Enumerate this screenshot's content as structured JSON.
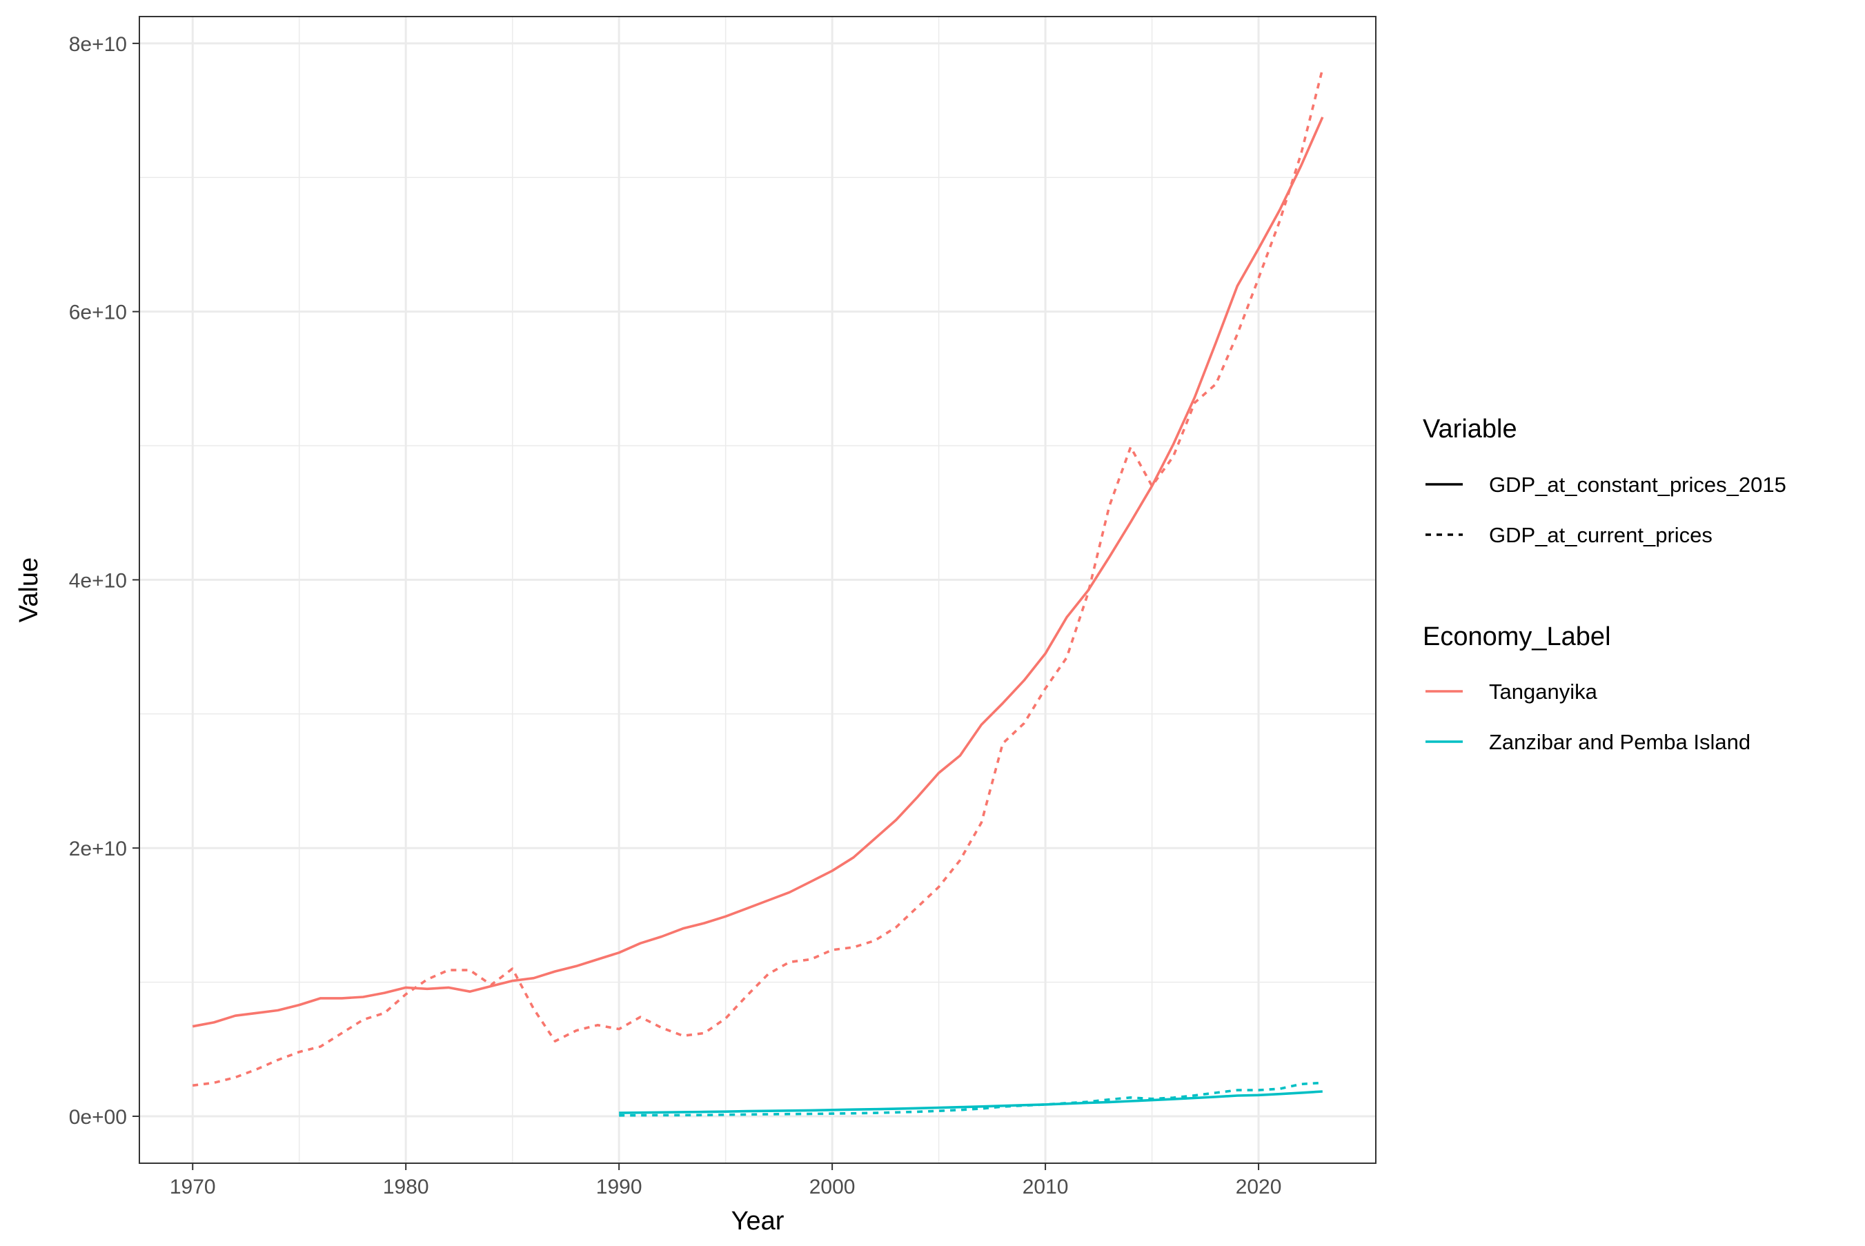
{
  "chart_data": {
    "type": "line",
    "xlabel": "Year",
    "ylabel": "Value",
    "xlim": [
      1967.5,
      2025.5
    ],
    "ylim": [
      -3500000000.0,
      82000000000.0
    ],
    "x_ticks": [
      1970,
      1980,
      1990,
      2000,
      2010,
      2020
    ],
    "x_tick_labels": [
      "1970",
      "1980",
      "1990",
      "2000",
      "2010",
      "2020"
    ],
    "y_ticks": [
      0,
      20000000000,
      40000000000,
      60000000000,
      80000000000
    ],
    "y_tick_labels": [
      "0e+00",
      "2e+10",
      "4e+10",
      "6e+10",
      "8e+10"
    ],
    "grid": true,
    "legend_placement": "right",
    "legends": [
      {
        "title": "Variable",
        "entries": [
          {
            "label": "GDP_at_constant_prices_2015",
            "linetype": "solid"
          },
          {
            "label": "GDP_at_current_prices",
            "linetype": "dotted"
          }
        ]
      },
      {
        "title": "Economy_Label",
        "entries": [
          {
            "label": "Tanganyika",
            "color": "#F8766D"
          },
          {
            "label": "Zanzibar and Pemba Island",
            "color": "#00BFC4"
          }
        ]
      }
    ],
    "series": [
      {
        "economy": "Tanganyika",
        "variable": "GDP_at_constant_prices_2015",
        "color": "#F8766D",
        "linetype": "solid",
        "x": [
          1970,
          1971,
          1972,
          1973,
          1974,
          1975,
          1976,
          1977,
          1978,
          1979,
          1980,
          1981,
          1982,
          1983,
          1984,
          1985,
          1986,
          1987,
          1988,
          1989,
          1990,
          1991,
          1992,
          1993,
          1994,
          1995,
          1996,
          1997,
          1998,
          1999,
          2000,
          2001,
          2002,
          2003,
          2004,
          2005,
          2006,
          2007,
          2008,
          2009,
          2010,
          2011,
          2012,
          2013,
          2014,
          2015,
          2016,
          2017,
          2018,
          2019,
          2020,
          2021,
          2022,
          2023
        ],
        "y": [
          6700000000.0,
          7000000000.0,
          7500000000.0,
          7700000000.0,
          7900000000.0,
          8300000000.0,
          8800000000.0,
          8800000000.0,
          8900000000.0,
          9200000000.0,
          9600000000.0,
          9500000000.0,
          9600000000.0,
          9300000000.0,
          9700000000.0,
          10100000000.0,
          10300000000.0,
          10800000000.0,
          11200000000.0,
          11700000000.0,
          12200000000.0,
          12900000000.0,
          13400000000.0,
          14000000000.0,
          14400000000.0,
          14900000000.0,
          15500000000.0,
          16100000000.0,
          16700000000.0,
          17500000000.0,
          18300000000.0,
          19300000000.0,
          20700000000.0,
          22100000000.0,
          23800000000.0,
          25600000000.0,
          26900000000.0,
          29200000000.0,
          30800000000.0,
          32500000000.0,
          34500000000.0,
          37200000000.0,
          39200000000.0,
          41700000000.0,
          44300000000.0,
          47000000000.0,
          50100000000.0,
          53600000000.0,
          57700000000.0,
          61900000000.0,
          64700000000.0,
          67600000000.0,
          70900000000.0,
          74500000000.0
        ]
      },
      {
        "economy": "Tanganyika",
        "variable": "GDP_at_current_prices",
        "color": "#F8766D",
        "linetype": "dotted",
        "x": [
          1970,
          1971,
          1972,
          1973,
          1974,
          1975,
          1976,
          1977,
          1978,
          1979,
          1980,
          1981,
          1982,
          1983,
          1984,
          1985,
          1986,
          1987,
          1988,
          1989,
          1990,
          1991,
          1992,
          1993,
          1994,
          1995,
          1996,
          1997,
          1998,
          1999,
          2000,
          2001,
          2002,
          2003,
          2004,
          2005,
          2006,
          2007,
          2008,
          2009,
          2010,
          2011,
          2012,
          2013,
          2014,
          2015,
          2016,
          2017,
          2018,
          2019,
          2020,
          2021,
          2022,
          2023
        ],
        "y": [
          2300000000.0,
          2500000000.0,
          2900000000.0,
          3500000000.0,
          4200000000.0,
          4800000000.0,
          5200000000.0,
          6200000000.0,
          7200000000.0,
          7700000000.0,
          9100000000.0,
          10200000000.0,
          10900000000.0,
          10900000000.0,
          9800000000.0,
          11000000000.0,
          8000000000.0,
          5600000000.0,
          6400000000.0,
          6800000000.0,
          6500000000.0,
          7400000000.0,
          6600000000.0,
          6000000000.0,
          6200000000.0,
          7300000000.0,
          9000000000.0,
          10600000000.0,
          11500000000.0,
          11700000000.0,
          12400000000.0,
          12600000000.0,
          13100000000.0,
          14100000000.0,
          15600000000.0,
          17100000000.0,
          19100000000.0,
          21900000000.0,
          27800000000.0,
          29300000000.0,
          31900000000.0,
          34200000000.0,
          39000000000.0,
          45500000000.0,
          49900000000.0,
          47000000000.0,
          49200000000.0,
          53200000000.0,
          54600000000.0,
          58300000000.0,
          62500000000.0,
          66800000000.0,
          71800000000.0,
          78100000000.0
        ]
      },
      {
        "economy": "Zanzibar and Pemba Island",
        "variable": "GDP_at_constant_prices_2015",
        "color": "#00BFC4",
        "linetype": "solid",
        "x": [
          1990,
          1991,
          1992,
          1993,
          1994,
          1995,
          1996,
          1997,
          1998,
          1999,
          2000,
          2001,
          2002,
          2003,
          2004,
          2005,
          2006,
          2007,
          2008,
          2009,
          2010,
          2011,
          2012,
          2013,
          2014,
          2015,
          2016,
          2017,
          2018,
          2019,
          2020,
          2021,
          2022,
          2023
        ],
        "y": [
          250000000.0,
          270000000.0,
          290000000.0,
          310000000.0,
          330000000.0,
          350000000.0,
          380000000.0,
          400000000.0,
          420000000.0,
          440000000.0,
          470000000.0,
          500000000.0,
          530000000.0,
          560000000.0,
          600000000.0,
          640000000.0,
          680000000.0,
          730000000.0,
          780000000.0,
          830000000.0,
          880000000.0,
          940000000.0,
          1000000000.0,
          1060000000.0,
          1130000000.0,
          1200000000.0,
          1280000000.0,
          1360000000.0,
          1450000000.0,
          1540000000.0,
          1580000000.0,
          1660000000.0,
          1750000000.0,
          1850000000.0
        ]
      },
      {
        "economy": "Zanzibar and Pemba Island",
        "variable": "GDP_at_current_prices",
        "color": "#00BFC4",
        "linetype": "dotted",
        "x": [
          1990,
          1991,
          1992,
          1993,
          1994,
          1995,
          1996,
          1997,
          1998,
          1999,
          2000,
          2001,
          2002,
          2003,
          2004,
          2005,
          2006,
          2007,
          2008,
          2009,
          2010,
          2011,
          2012,
          2013,
          2014,
          2015,
          2016,
          2017,
          2018,
          2019,
          2020,
          2021,
          2022,
          2023
        ],
        "y": [
          60000000.0,
          70000000.0,
          80000000.0,
          80000000.0,
          90000000.0,
          110000000.0,
          130000000.0,
          150000000.0,
          170000000.0,
          180000000.0,
          200000000.0,
          220000000.0,
          250000000.0,
          290000000.0,
          340000000.0,
          400000000.0,
          470000000.0,
          570000000.0,
          720000000.0,
          800000000.0,
          880000000.0,
          980000000.0,
          1080000000.0,
          1250000000.0,
          1400000000.0,
          1300000000.0,
          1380000000.0,
          1550000000.0,
          1750000000.0,
          1950000000.0,
          1950000000.0,
          2050000000.0,
          2400000000.0,
          2500000000.0
        ]
      }
    ]
  }
}
